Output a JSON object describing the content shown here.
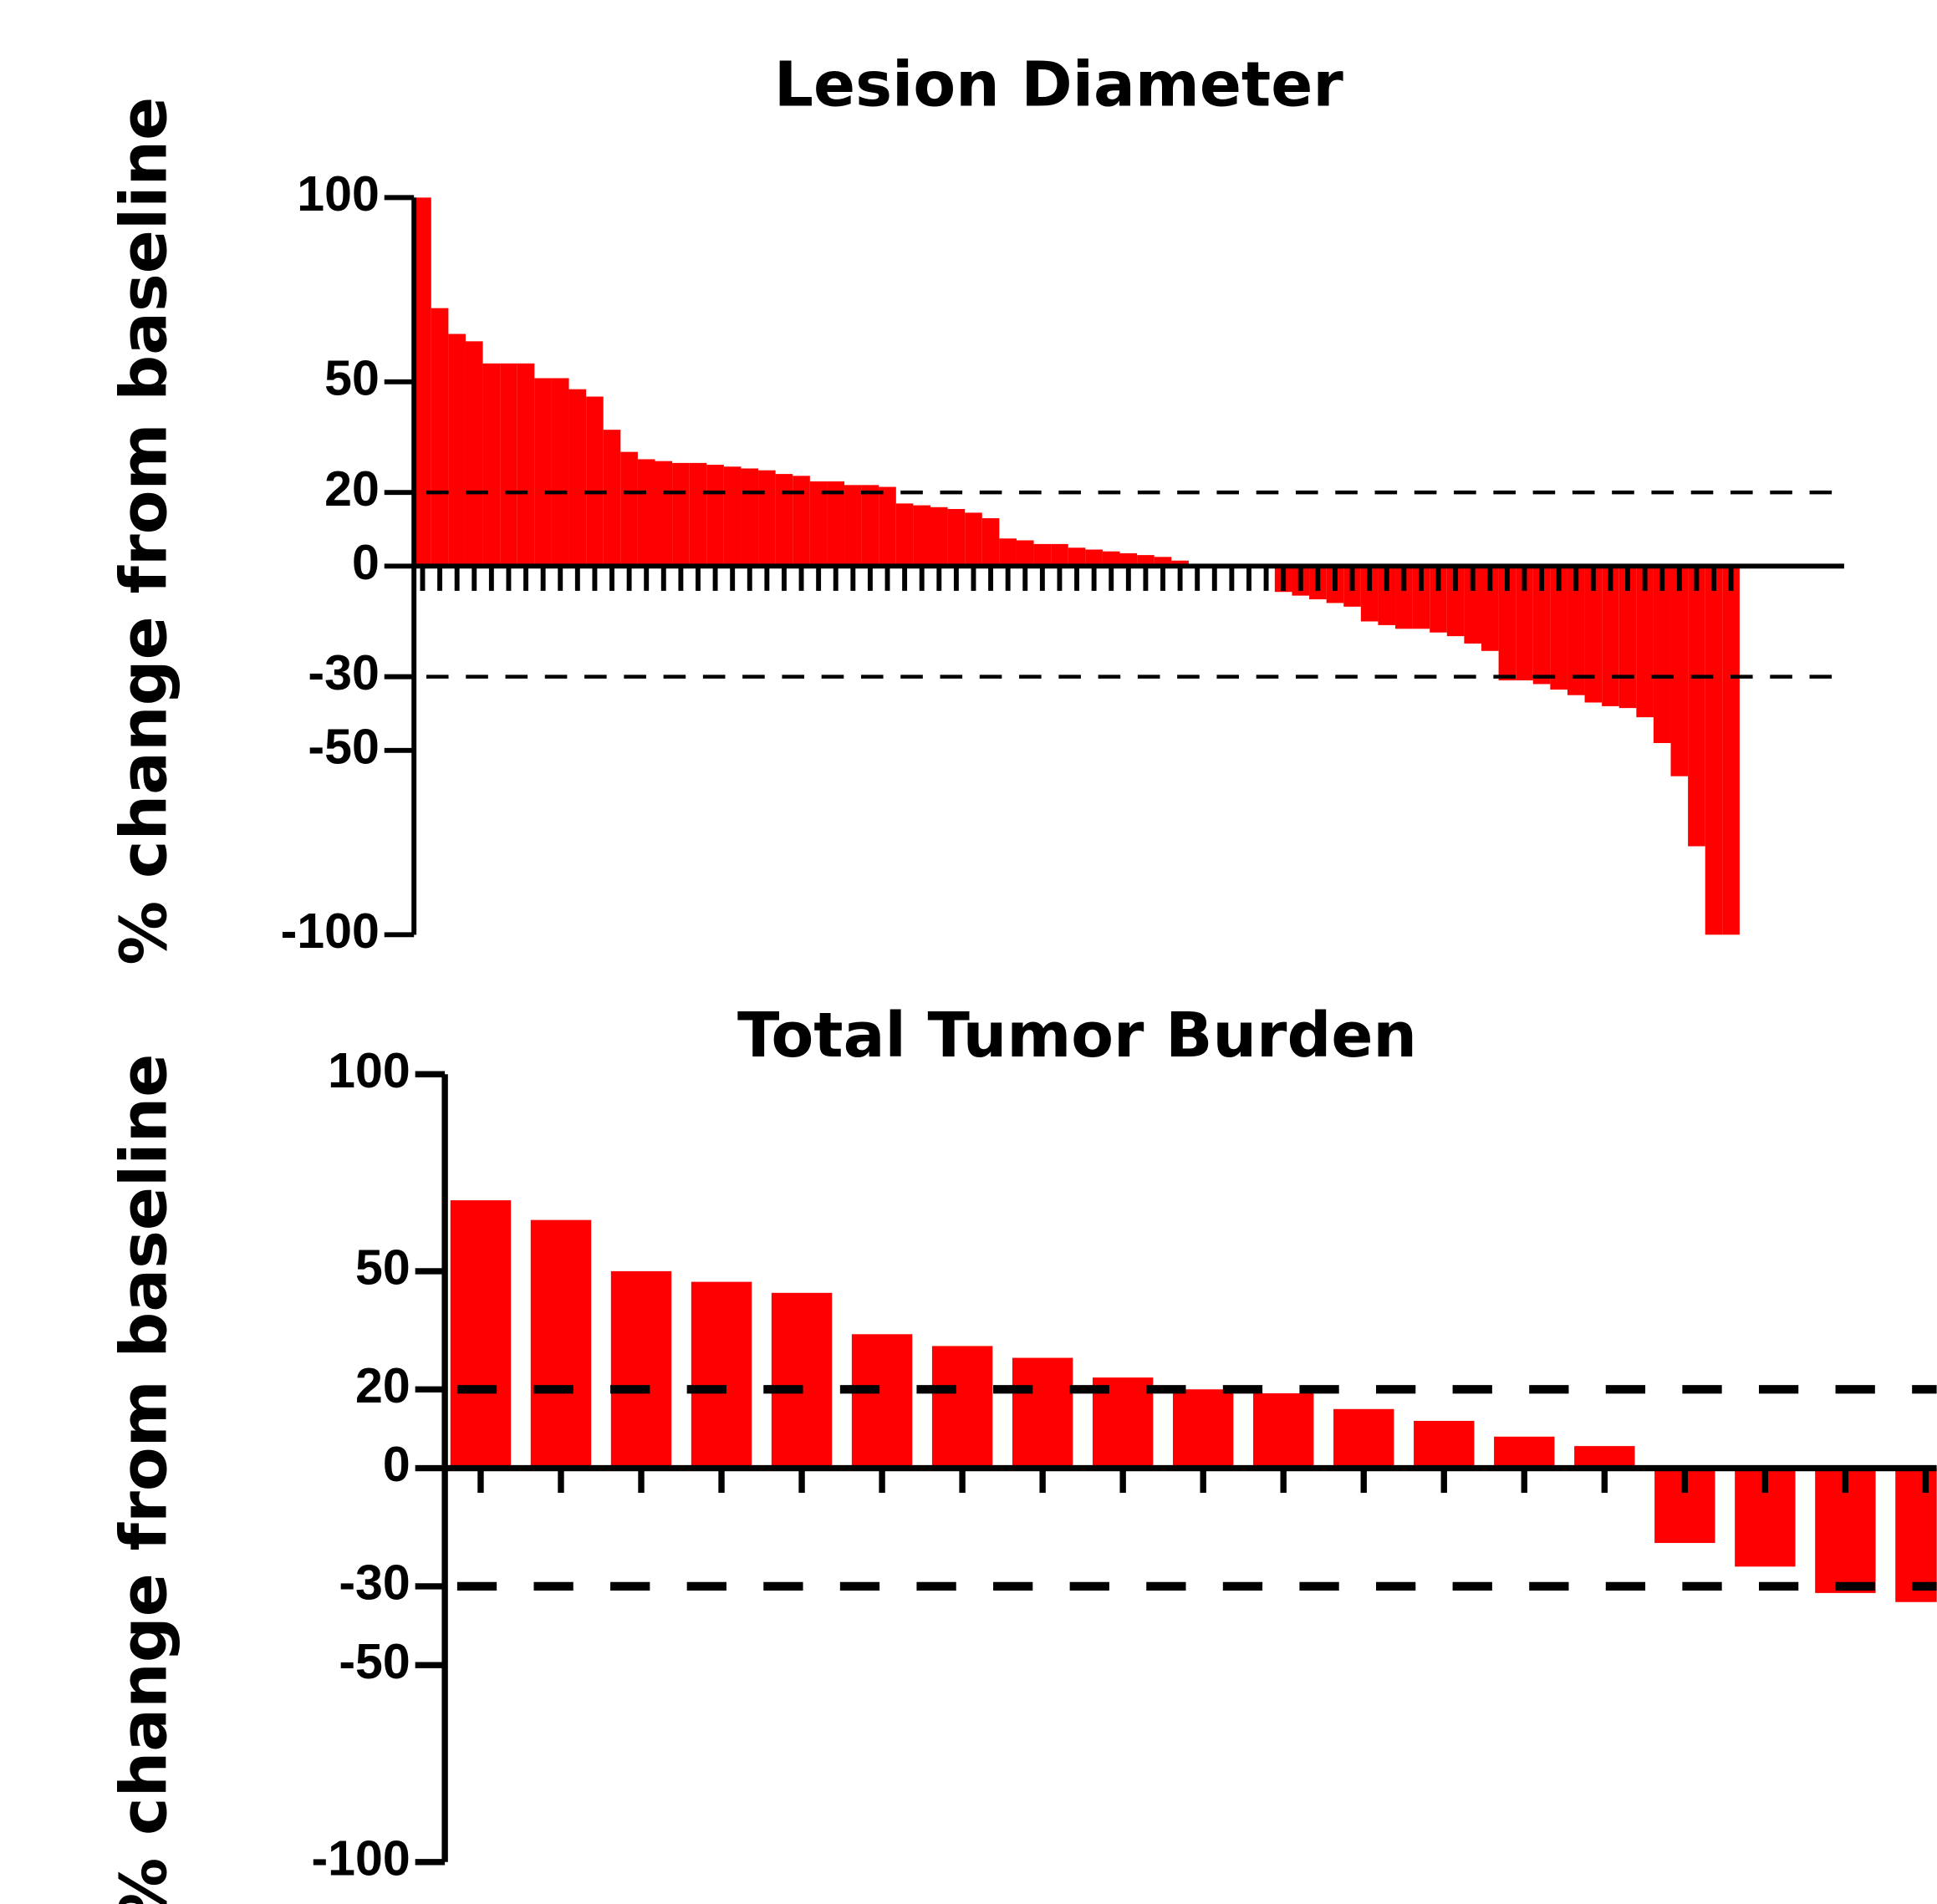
{
  "chart_data": [
    {
      "type": "bar",
      "title": "Lesion Diameter",
      "y_label": "% change from baseline",
      "color": "#ff0000",
      "values": [
        100,
        70,
        63,
        61,
        55,
        55,
        55,
        51,
        51,
        48,
        46,
        37,
        31,
        29,
        28.5,
        28,
        28,
        27.5,
        27,
        26.5,
        26,
        25,
        24.5,
        23,
        23,
        22,
        22,
        21.5,
        17,
        16.5,
        16,
        15.5,
        14.5,
        13,
        7.5,
        7,
        6,
        6,
        5,
        4.5,
        4,
        3.5,
        3,
        2.5,
        1.5,
        0,
        0,
        0,
        0,
        0,
        -7,
        -8,
        -9,
        -10,
        -11,
        -15,
        -16,
        -17,
        -17,
        -18,
        -19,
        -21,
        -23,
        -31,
        -31,
        -32,
        -33.5,
        -35,
        -37,
        -38,
        -38.5,
        -41,
        -48,
        -57,
        -76,
        -100,
        -100
      ],
      "ylim": [
        -100,
        100
      ],
      "yticks": [
        100,
        50,
        20,
        0,
        -30,
        -50,
        -100
      ],
      "reference_lines": [
        20,
        -30
      ]
    },
    {
      "type": "bar",
      "title": "Total Tumor Burden",
      "y_label": "% change from baseline",
      "color": "#ff0000",
      "values": [
        68,
        63,
        50,
        47.3,
        44.5,
        34,
        31,
        28,
        23,
        20,
        19,
        15,
        12,
        8,
        5.6,
        -19,
        -25,
        -31.7,
        -34
      ],
      "ylim": [
        -100,
        100
      ],
      "yticks": [
        100,
        50,
        20,
        0,
        -30,
        -50,
        -100
      ],
      "reference_lines": [
        20,
        -30
      ]
    }
  ]
}
